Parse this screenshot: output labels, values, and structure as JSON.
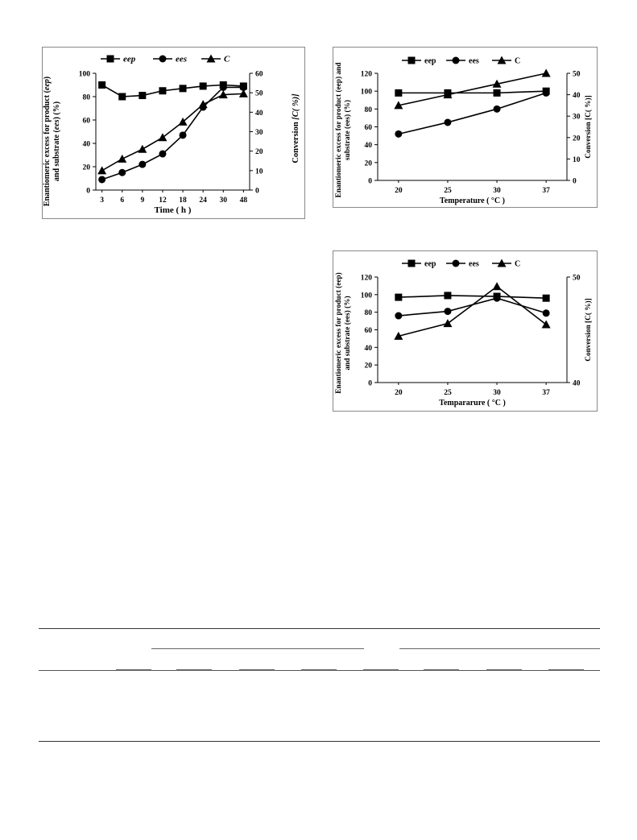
{
  "chart_data": [
    {
      "type": "line",
      "title": "",
      "legend_position": "top",
      "categories": [
        "3",
        "6",
        "9",
        "12",
        "18",
        "24",
        "30",
        "48"
      ],
      "series": [
        {
          "name": "eep",
          "marker": "square",
          "axis": "left",
          "values": [
            90,
            80,
            81,
            85,
            87,
            89,
            90,
            89
          ]
        },
        {
          "name": "ees",
          "marker": "circle",
          "axis": "left",
          "values": [
            9,
            15,
            22,
            31,
            47,
            71,
            88,
            88
          ]
        },
        {
          "name": "C",
          "marker": "triangle",
          "axis": "right",
          "values": [
            10,
            16,
            21,
            27,
            35,
            44,
            49,
            49.5
          ]
        }
      ],
      "xlabel": "Time ( h )",
      "ylabel_parts": [
        "Enantiomeric excess for product (",
        "eep",
        ")",
        "and substrate (",
        "ees",
        ") (%)"
      ],
      "ylabel2_parts": [
        "Conversion ",
        "[C( %)]"
      ],
      "ylim": [
        0,
        100
      ],
      "yticks": [
        "0",
        "20",
        "40",
        "60",
        "80",
        "100"
      ],
      "ylim2": [
        0,
        60
      ],
      "yticks2": [
        "0",
        "10",
        "20",
        "30",
        "40",
        "50",
        "60"
      ],
      "grid": false,
      "italic_legend": true
    },
    {
      "type": "line",
      "title": "",
      "legend_position": "top",
      "categories": [
        "20",
        "25",
        "30",
        "37"
      ],
      "series": [
        {
          "name": "eep",
          "marker": "square",
          "axis": "left",
          "values": [
            98,
            98,
            98,
            100
          ]
        },
        {
          "name": "ees",
          "marker": "circle",
          "axis": "left",
          "values": [
            52,
            65,
            80,
            98
          ]
        },
        {
          "name": "C",
          "marker": "triangle",
          "axis": "right",
          "values": [
            35,
            40,
            45,
            50
          ]
        }
      ],
      "xlabel": "Temperature ( °C )",
      "ylabel_lines": [
        "Enantiomeric excess for product (eep) and",
        "substrate (ees) (%)"
      ],
      "ylabel2": "Conversion [C( %)]",
      "ylim": [
        0,
        120
      ],
      "yticks": [
        "0",
        "20",
        "40",
        "60",
        "80",
        "100",
        "120"
      ],
      "ylim2": [
        0,
        50
      ],
      "yticks2": [
        "0",
        "10",
        "20",
        "30",
        "40",
        "50"
      ],
      "grid": false,
      "italic_legend": false
    },
    {
      "type": "line",
      "title": "",
      "legend_position": "top",
      "categories": [
        "20",
        "25",
        "30",
        "37"
      ],
      "series": [
        {
          "name": "eep",
          "marker": "square",
          "axis": "left",
          "values": [
            97,
            99,
            98,
            96
          ]
        },
        {
          "name": "ees",
          "marker": "circle",
          "axis": "left",
          "values": [
            76,
            81,
            96,
            79
          ]
        },
        {
          "name": "C",
          "marker": "triangle",
          "axis": "right",
          "values": [
            44.4,
            45.6,
            49.1,
            45.5
          ]
        }
      ],
      "xlabel": "Tempararure ( °C )",
      "ylabel_lines": [
        "Enantiomeric excess for product (eep)",
        "and substrate (ees) (%)"
      ],
      "ylabel2": "Conversion [C( %)]",
      "ylim": [
        0,
        120
      ],
      "yticks": [
        "0",
        "20",
        "40",
        "60",
        "80",
        "100",
        "120"
      ],
      "ylim2": [
        40,
        50
      ],
      "yticks2": [
        "40",
        "50"
      ],
      "grid": false,
      "italic_legend": false
    }
  ]
}
